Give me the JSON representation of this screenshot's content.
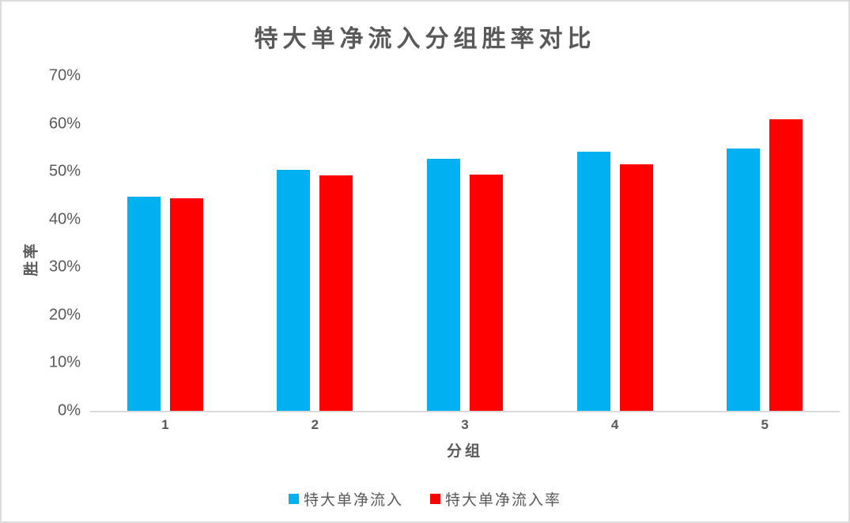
{
  "page": {
    "background": "#ffffff",
    "border_color": "#dcdcdc",
    "text_color": "#595959",
    "axis_line_color": "#d9d9d9"
  },
  "chart_data": {
    "type": "bar",
    "title": "特大单净流入分组胜率对比",
    "xlabel": "分组",
    "ylabel": "胜率",
    "categories": [
      "1",
      "2",
      "3",
      "4",
      "5"
    ],
    "series": [
      {
        "name": "特大单净流入",
        "color": "#00b0f0",
        "values": [
          44.7,
          50.3,
          52.6,
          54.1,
          54.8
        ]
      },
      {
        "name": "特大单净流入率",
        "color": "#ff0000",
        "values": [
          44.4,
          49.2,
          49.3,
          51.5,
          60.9
        ]
      }
    ],
    "ylim": [
      0,
      70
    ],
    "ytick_step": 10,
    "ytick_labels": [
      "0%",
      "10%",
      "20%",
      "30%",
      "40%",
      "50%",
      "60%",
      "70%"
    ],
    "grid": false,
    "legend_position": "bottom"
  }
}
